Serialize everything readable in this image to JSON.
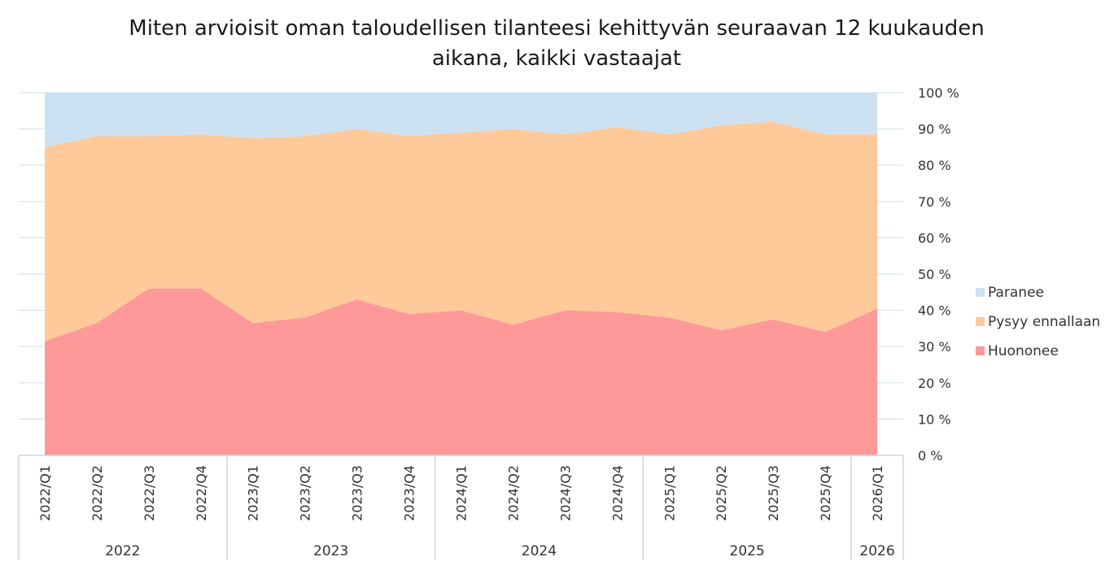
{
  "chart_data": {
    "type": "area",
    "stacked": true,
    "normalized": true,
    "title": "Miten arvioisit oman taloudellisen tilanteesi kehittyvän seuraavan 12 kuukauden aikana, kaikki vastaajat",
    "title_lines": [
      "Miten arvioisit oman taloudellisen tilanteesi kehittyvän seuraavan 12 kuukauden",
      "aikana, kaikki vastaajat"
    ],
    "categories": [
      "2022/Q1",
      "2022/Q2",
      "2022/Q3",
      "2022/Q4",
      "2023/Q1",
      "2023/Q2",
      "2023/Q3",
      "2023/Q4",
      "2024/Q1",
      "2024/Q2",
      "2024/Q3",
      "2024/Q4",
      "2025/Q1",
      "2025/Q2",
      "2025/Q3",
      "2025/Q4",
      "2026/Q1"
    ],
    "groups": [
      {
        "label": "2022",
        "count": 4
      },
      {
        "label": "2023",
        "count": 4
      },
      {
        "label": "2024",
        "count": 4
      },
      {
        "label": "2025",
        "count": 4
      },
      {
        "label": "2026",
        "count": 1
      }
    ],
    "series": [
      {
        "name": "Huononee",
        "color": "#ff9999",
        "values": [
          31.5,
          36.5,
          46,
          46,
          36.5,
          38,
          43,
          39,
          40,
          36,
          40,
          39.5,
          38,
          34.5,
          37.5,
          34,
          40.5
        ]
      },
      {
        "name": "Pysyy ennallaan",
        "color": "#ffc999",
        "values": [
          53.5,
          51.5,
          42,
          42.5,
          51,
          50,
          47,
          49,
          49,
          54,
          48.5,
          51,
          50.5,
          56.5,
          54.5,
          54.5,
          48
        ]
      },
      {
        "name": "Paranee",
        "color": "#cce2f2",
        "values": [
          15,
          12,
          12,
          11.5,
          12.5,
          12,
          10,
          12,
          11,
          10,
          11.5,
          9.5,
          11.5,
          9,
          8,
          11.5,
          11.5
        ]
      }
    ],
    "yticks": [
      "0 %",
      "10 %",
      "20 %",
      "30 %",
      "40 %",
      "50 %",
      "60 %",
      "70 %",
      "80 %",
      "90 %",
      "100 %"
    ],
    "ylim": [
      0,
      100
    ],
    "y_axis_position": "right",
    "grid": true,
    "legend_position": "right",
    "legend_order": [
      "Paranee",
      "Pysyy ennallaan",
      "Huononee"
    ]
  }
}
